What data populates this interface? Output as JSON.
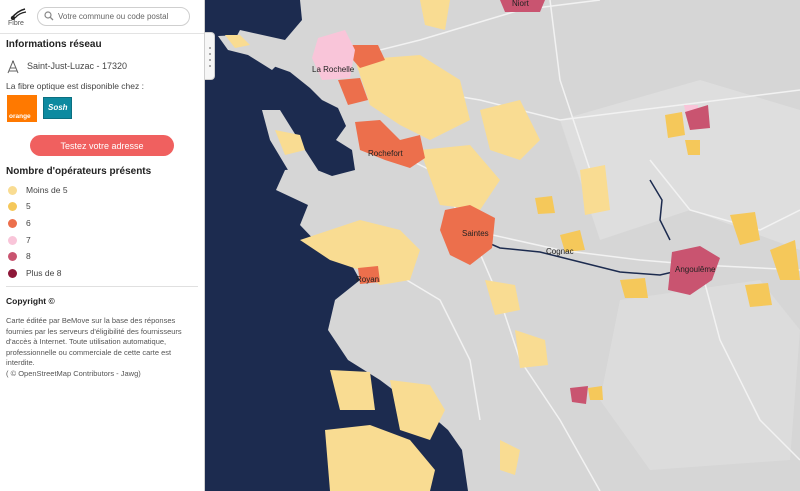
{
  "header": {
    "logo_label": "Fibre",
    "search_placeholder": "Votre commune ou code postal"
  },
  "info": {
    "title": "Informations réseau",
    "location": "Saint-Just-Luzac - 17320",
    "availability": "La fibre optique est disponible chez :",
    "operators": [
      {
        "label": "orange",
        "color": "#ff7900"
      },
      {
        "label": "Sosh",
        "color": "#0d8aa0"
      }
    ],
    "test_button": "Testez votre adresse"
  },
  "legend": {
    "title": "Nombre d'opérateurs présents",
    "items": [
      {
        "label": "Moins de 5",
        "color": "#f9dc92"
      },
      {
        "label": "5",
        "color": "#f5c85a"
      },
      {
        "label": "6",
        "color": "#ec6f4c"
      },
      {
        "label": "7",
        "color": "#f9c5d9"
      },
      {
        "label": "8",
        "color": "#c95470"
      },
      {
        "label": "Plus de 8",
        "color": "#8e1839"
      }
    ]
  },
  "copyright": {
    "title": "Copyright ©",
    "text": "Carte éditée par BeMove sur la base des réponses fournies par les serveurs d'éligibilité des fournisseurs d'accès à Internet. Toute utilisation automatique, professionnelle ou commerciale de cette carte est interdite.",
    "attribution": "( © OpenStreetMap Contributors - Jawg)"
  },
  "map": {
    "colors": {
      "sea": "#1c2b4f",
      "land": "#d6d6d6",
      "land_light": "#e4e4e4"
    },
    "cities": [
      "Niort",
      "La Rochelle",
      "Rochefort",
      "Saintes",
      "Cognac",
      "Angoulême",
      "Royan"
    ]
  }
}
